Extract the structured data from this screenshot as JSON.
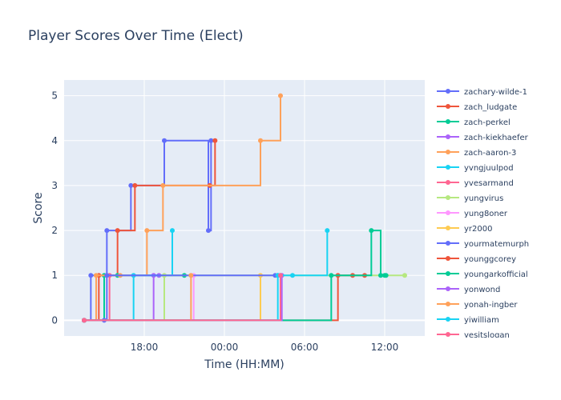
{
  "chart_data": {
    "type": "line",
    "line_shape": "step",
    "title": "Player Scores Over Time (Elect)",
    "xlabel": "Time (HH:MM)",
    "ylabel": "Score",
    "x_tick_labels": [
      "18:00",
      "00:00",
      "06:00",
      "12:00"
    ],
    "x_tick_hours": [
      18,
      24,
      30,
      36
    ],
    "x_range_hours": [
      12.0,
      39.0
    ],
    "ylim": [
      -0.35,
      5.35
    ],
    "y_ticks": [
      0,
      1,
      2,
      3,
      4,
      5
    ],
    "grid": true,
    "legend_position": "right",
    "series": [
      {
        "name": "zachary-wilde-1",
        "color": "#636efa",
        "points": [
          [
            13.5,
            0
          ],
          [
            14.0,
            1
          ],
          [
            15.2,
            2
          ],
          [
            17.0,
            3
          ],
          [
            19.5,
            4
          ],
          [
            22.8,
            2
          ],
          [
            23.0,
            4
          ]
        ]
      },
      {
        "name": "zach_ludgate",
        "color": "#ef553b",
        "points": [
          [
            13.5,
            0
          ],
          [
            14.6,
            1
          ],
          [
            16.0,
            2
          ],
          [
            17.3,
            3
          ],
          [
            22.9,
            3
          ],
          [
            23.3,
            4
          ]
        ]
      },
      {
        "name": "zach-perkel",
        "color": "#00cc96",
        "points": [
          [
            13.5,
            0
          ],
          [
            15.0,
            1
          ],
          [
            16.0,
            1
          ],
          [
            21.0,
            1
          ]
        ]
      },
      {
        "name": "zach-kiekhaefer",
        "color": "#ab63fa",
        "points": [
          [
            13.5,
            0
          ],
          [
            18.7,
            1
          ],
          [
            19.1,
            1
          ]
        ]
      },
      {
        "name": "zach-aaron-3",
        "color": "#ffa15a",
        "points": [
          [
            13.5,
            0
          ],
          [
            14.4,
            1
          ],
          [
            16.2,
            1
          ],
          [
            18.2,
            2
          ],
          [
            19.4,
            3
          ],
          [
            26.7,
            4
          ],
          [
            28.2,
            5
          ]
        ]
      },
      {
        "name": "yvngjuulpod",
        "color": "#19d3f3",
        "points": [
          [
            13.5,
            0
          ],
          [
            17.2,
            1
          ],
          [
            20.1,
            2
          ]
        ]
      },
      {
        "name": "yvesarmand",
        "color": "#ff6692",
        "points": [
          [
            13.5,
            0
          ],
          [
            15.4,
            1
          ]
        ]
      },
      {
        "name": "yungvirus",
        "color": "#b6e880",
        "points": [
          [
            13.5,
            0
          ],
          [
            19.5,
            1
          ],
          [
            37.5,
            1
          ]
        ]
      },
      {
        "name": "yung8oner",
        "color": "#ff97ff",
        "points": [
          [
            13.5,
            0
          ],
          [
            21.7,
            1
          ]
        ]
      },
      {
        "name": "yr2000",
        "color": "#fecb52",
        "points": [
          [
            13.5,
            0
          ],
          [
            26.7,
            1
          ]
        ]
      },
      {
        "name": "yourmatemurph",
        "color": "#636efa",
        "points": [
          [
            13.5,
            0
          ],
          [
            15.0,
            0
          ],
          [
            15.2,
            1
          ],
          [
            27.8,
            1
          ],
          [
            28.0,
            1
          ],
          [
            28.2,
            1
          ]
        ]
      },
      {
        "name": "younggcorey",
        "color": "#ef553b",
        "points": [
          [
            13.5,
            0
          ],
          [
            32.5,
            1
          ],
          [
            33.6,
            1
          ],
          [
            34.5,
            1
          ]
        ]
      },
      {
        "name": "youngarkofficial",
        "color": "#00cc96",
        "points": [
          [
            13.5,
            0
          ],
          [
            32.0,
            1
          ],
          [
            35.0,
            2
          ],
          [
            35.7,
            1
          ],
          [
            36.0,
            1
          ],
          [
            36.1,
            1
          ]
        ]
      },
      {
        "name": "yonwond",
        "color": "#ab63fa",
        "points": [
          [
            13.5,
            0
          ],
          [
            28.3,
            1
          ]
        ]
      },
      {
        "name": "yonah-ingber",
        "color": "#ffa15a",
        "points": [
          [
            13.5,
            0
          ],
          [
            21.5,
            1
          ]
        ]
      },
      {
        "name": "yiwilliam",
        "color": "#19d3f3",
        "points": [
          [
            13.5,
            0
          ],
          [
            28.0,
            1
          ],
          [
            29.1,
            1
          ],
          [
            31.7,
            2
          ]
        ]
      },
      {
        "name": "yesitslogan",
        "color": "#ff6692",
        "points": [
          [
            13.5,
            0
          ],
          [
            28.2,
            1
          ]
        ]
      }
    ]
  }
}
